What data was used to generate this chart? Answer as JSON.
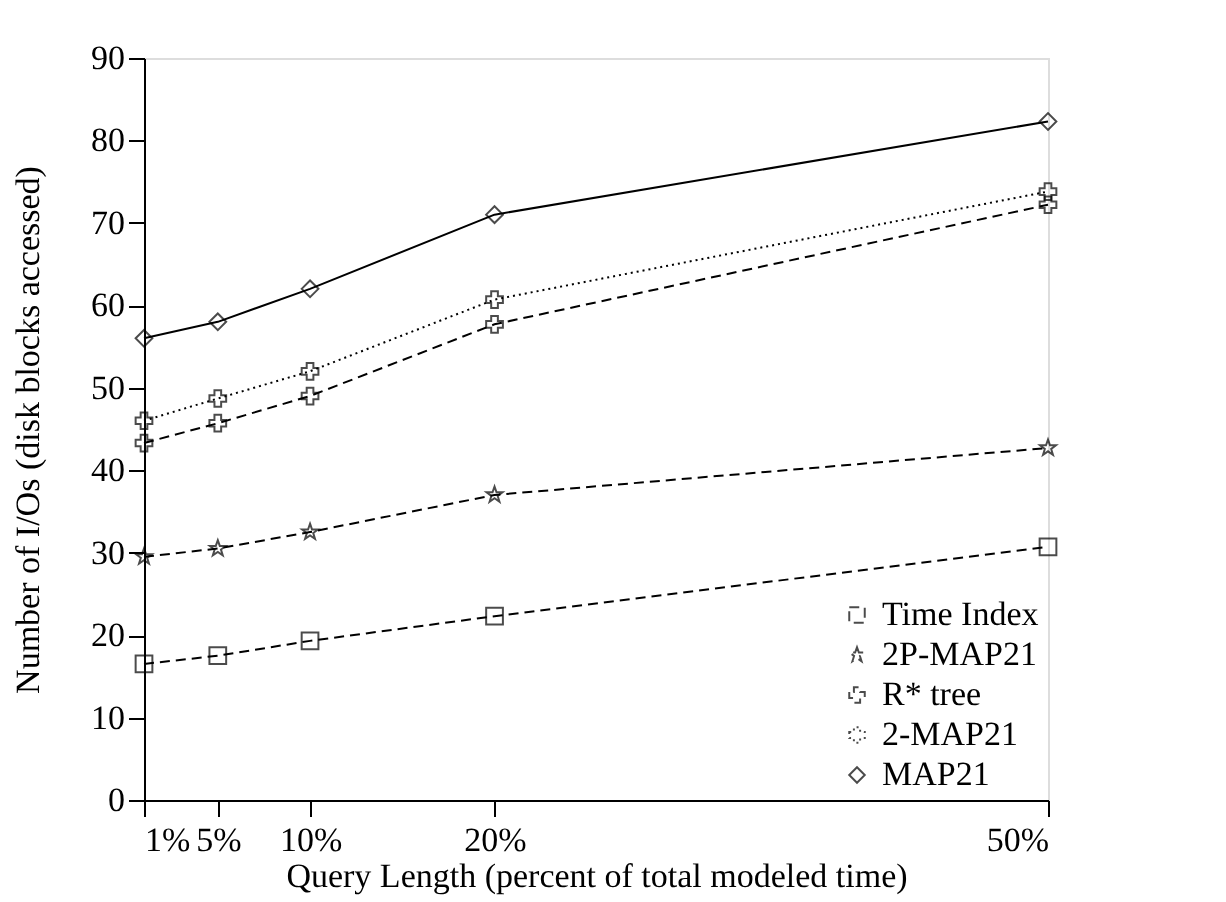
{
  "chart_data": {
    "type": "line",
    "xlabel": "Query Length (percent of total modeled time)",
    "ylabel": "Number of I/Os (disk blocks accessed)",
    "x": [
      1,
      5,
      10,
      20,
      50
    ],
    "xlim": [
      1,
      50
    ],
    "xticks": [
      {
        "value": 1,
        "label": "1%"
      },
      {
        "value": 5,
        "label": "5%"
      },
      {
        "value": 10,
        "label": "10%"
      },
      {
        "value": 20,
        "label": "20%"
      },
      {
        "value": 50,
        "label": "50%"
      }
    ],
    "ylim": [
      0,
      90
    ],
    "yticks": [
      0,
      10,
      20,
      30,
      40,
      50,
      60,
      70,
      80,
      90
    ],
    "grid": false,
    "legend": "bottom right",
    "series": [
      {
        "name": "Time Index",
        "color": "#000000",
        "marker": "square",
        "line_style": "dashed",
        "values": [
          16.5,
          17.5,
          19.3,
          22.3,
          30.7
        ]
      },
      {
        "name": "2P-MAP21",
        "color": "#000000",
        "marker": "star",
        "line_style": "dashed",
        "values": [
          29.5,
          30.5,
          32.5,
          37,
          42.7
        ]
      },
      {
        "name": "R* tree",
        "color": "#000000",
        "marker": "cross",
        "line_style": "dashed",
        "values": [
          43.3,
          45.7,
          49,
          57.7,
          72.2
        ]
      },
      {
        "name": "2-MAP21",
        "color": "#000000",
        "marker": "cross",
        "line_style": "dotted",
        "values": [
          46,
          48.7,
          52,
          60.7,
          73.8
        ]
      },
      {
        "name": "MAP21",
        "color": "#000000",
        "marker": "diamond",
        "line_style": "solid",
        "values": [
          56,
          58,
          62,
          71,
          82.3
        ]
      }
    ]
  }
}
